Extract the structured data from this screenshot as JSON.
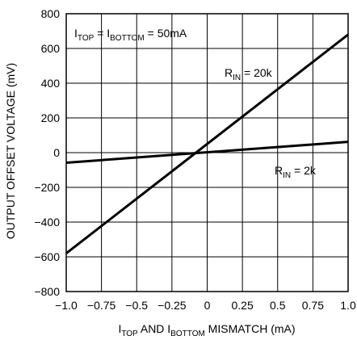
{
  "chart_data": {
    "type": "line",
    "title": "",
    "xlabel": {
      "parts": [
        [
          "I",
          "TOP",
          " AND I",
          "BOTTOM",
          " MISMATCH (mA)"
        ]
      ]
    },
    "ylabel": "OUTPUT OFFSET VOLTAGE (mV)",
    "xlim": [
      -1.0,
      1.0
    ],
    "ylim": [
      -800,
      800
    ],
    "x_ticks": [
      -1.0,
      -0.75,
      -0.5,
      -0.25,
      0,
      0.25,
      0.5,
      0.75,
      1.0
    ],
    "x_tick_labels": [
      "−1.0",
      "−0.75",
      "−0.5",
      "−0.25",
      "0",
      "0.25",
      "0.5",
      "0.75",
      "1.0"
    ],
    "y_ticks": [
      -800,
      -600,
      -400,
      -200,
      0,
      200,
      400,
      600,
      800
    ],
    "y_tick_labels": [
      "−800",
      "−600",
      "−400",
      "−200",
      "0",
      "200",
      "400",
      "600",
      "800"
    ],
    "grid": true,
    "series": [
      {
        "name": "R_IN = 20k",
        "x": [
          -1.0,
          1.0
        ],
        "y": [
          -580,
          680
        ]
      },
      {
        "name": "R_IN = 2k",
        "x": [
          -1.0,
          1.0
        ],
        "y": [
          -58,
          62
        ]
      }
    ],
    "annotations": {
      "condition": {
        "base1": "I",
        "sub1": "TOP",
        "mid": " = I",
        "sub2": "BOTTOM",
        "tail": " = 50mA"
      },
      "series_20k": {
        "base": "R",
        "sub": "IN",
        "tail": " = 20k"
      },
      "series_2k": {
        "base": "R",
        "sub": "IN",
        "tail": " = 2k"
      }
    },
    "xlabel_parts": {
      "a": "I",
      "a_sub": "TOP",
      "b": " AND I",
      "b_sub": "BOTTOM",
      "c": " MISMATCH (mA)"
    }
  }
}
